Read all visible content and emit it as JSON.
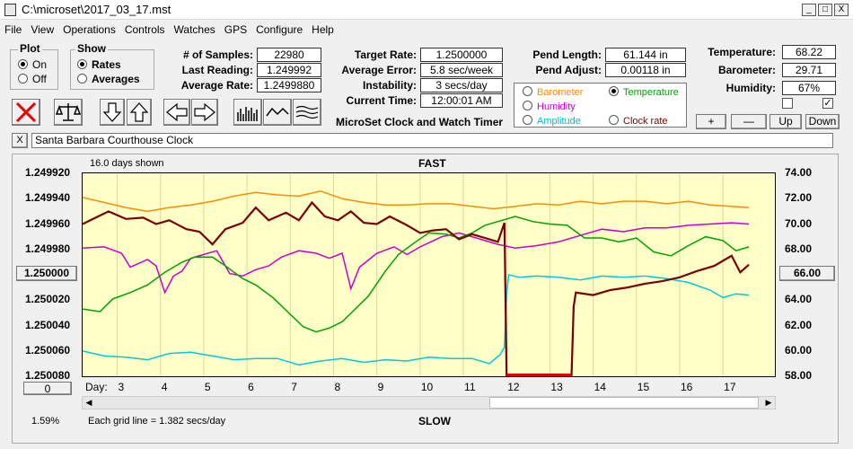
{
  "window": {
    "title": "C:\\microset\\2017_03_17.mst",
    "btn_min": "_",
    "btn_max": "□",
    "btn_close": "X"
  },
  "menu": [
    "File",
    "View",
    "Operations",
    "Controls",
    "Watches",
    "GPS",
    "Configure",
    "Help"
  ],
  "plot_group": {
    "title": "Plot",
    "on": "On",
    "off": "Off",
    "selected": "On"
  },
  "show_group": {
    "title": "Show",
    "rates": "Rates",
    "averages": "Averages",
    "selected": "Rates"
  },
  "stats": {
    "samples_label": "# of Samples:",
    "samples": "22980",
    "last_label": "Last Reading:",
    "last": "1.249992",
    "avg_label": "Average Rate:",
    "avg": "1.2499880",
    "target_label": "Target Rate:",
    "target": "1.2500000",
    "err_label": "Average Error:",
    "err": "5.8 sec/week",
    "instab_label": "Instability:",
    "instab": "3 secs/day",
    "time_label": "Current Time:",
    "time": "12:00:01 AM",
    "pend_len_label": "Pend Length:",
    "pend_len": "61.144 in",
    "pend_adj_label": "Pend Adjust:",
    "pend_adj": "0.00118 in",
    "temp_label": "Temperature:",
    "temp": "68.22",
    "baro_label": "Barometer:",
    "baro": "29.71",
    "hum_label": "Humidity:",
    "hum": "67%"
  },
  "app_label": "MicroSet Clock and Watch Timer",
  "series_select": {
    "barometer": "Barometer",
    "temperature": "Temperature",
    "humidity": "Humidity",
    "amplitude": "Amplitude",
    "clock_rate": "Clock rate",
    "selected": "Temperature",
    "colors": {
      "barometer": "#ff8c00",
      "temperature": "#00a000",
      "humidity": "#cc00cc",
      "amplitude": "#00c8e0",
      "clock_rate": "#7a0000"
    }
  },
  "right_buttons": {
    "plus": "+",
    "minus": "—",
    "up": "Up",
    "down": "Down"
  },
  "checkboxes": {
    "first": false,
    "second": true
  },
  "clock_name": "Santa Barbara Courthouse Clock",
  "close_x": "X",
  "chart_header": {
    "days_shown": "16.0 days shown",
    "fast": "FAST",
    "slow": "SLOW",
    "grid_note": "Each grid line = 1.382 secs/day",
    "day_label": "Day:",
    "percent": "1.59%",
    "left_btn": "1.250000",
    "right_btn": "66.00",
    "zero_btn": "0"
  },
  "chart_data": {
    "type": "line",
    "xlim": [
      2.2,
      18.2
    ],
    "days": [
      "3",
      "4",
      "5",
      "6",
      "7",
      "8",
      "9",
      "10",
      "11",
      "12",
      "13",
      "14",
      "15",
      "16",
      "17"
    ],
    "y_left_ticks": [
      "1.249920",
      "1.249940",
      "1.249960",
      "1.249980",
      "1.250000",
      "1.250020",
      "1.250040",
      "1.250060",
      "1.250080"
    ],
    "y_right_ticks": [
      "74.00",
      "72.00",
      "70.00",
      "68.00",
      "66.00",
      "64.00",
      "62.00",
      "60.00",
      "58.00"
    ],
    "series": [
      {
        "key": "barometer",
        "color": "#ff8c00",
        "points": [
          [
            2.2,
            72.1
          ],
          [
            2.7,
            71.7
          ],
          [
            3.2,
            71.3
          ],
          [
            3.7,
            71.0
          ],
          [
            4.2,
            71.3
          ],
          [
            4.7,
            71.5
          ],
          [
            5.2,
            71.8
          ],
          [
            5.7,
            72.2
          ],
          [
            6.2,
            72.5
          ],
          [
            6.7,
            72.3
          ],
          [
            7.2,
            72.2
          ],
          [
            7.7,
            72.6
          ],
          [
            8.2,
            72.0
          ],
          [
            8.7,
            71.7
          ],
          [
            9.2,
            71.5
          ],
          [
            9.7,
            71.5
          ],
          [
            10.2,
            71.6
          ],
          [
            10.7,
            71.6
          ],
          [
            11.2,
            71.4
          ],
          [
            11.7,
            71.2
          ],
          [
            12.2,
            71.4
          ],
          [
            12.7,
            71.6
          ],
          [
            13.2,
            71.5
          ],
          [
            13.7,
            71.8
          ],
          [
            14.2,
            71.6
          ],
          [
            14.7,
            71.8
          ],
          [
            15.2,
            71.8
          ],
          [
            15.7,
            71.6
          ],
          [
            16.2,
            71.8
          ],
          [
            16.7,
            71.5
          ],
          [
            17.2,
            71.4
          ],
          [
            17.6,
            71.3
          ]
        ]
      },
      {
        "key": "humidity",
        "color": "#cc00cc",
        "points": [
          [
            2.2,
            68.1
          ],
          [
            2.7,
            68.2
          ],
          [
            3.1,
            67.7
          ],
          [
            3.3,
            66.6
          ],
          [
            3.7,
            67.2
          ],
          [
            3.9,
            66.7
          ],
          [
            4.1,
            64.6
          ],
          [
            4.3,
            65.9
          ],
          [
            4.5,
            66.3
          ],
          [
            4.7,
            67.3
          ],
          [
            5.0,
            67.6
          ],
          [
            5.3,
            67.9
          ],
          [
            5.6,
            66.1
          ],
          [
            5.9,
            65.9
          ],
          [
            6.2,
            66.4
          ],
          [
            6.5,
            66.7
          ],
          [
            6.8,
            67.4
          ],
          [
            7.2,
            67.9
          ],
          [
            7.6,
            67.7
          ],
          [
            7.9,
            67.3
          ],
          [
            8.2,
            67.7
          ],
          [
            8.4,
            64.9
          ],
          [
            8.6,
            66.6
          ],
          [
            9.0,
            67.7
          ],
          [
            9.4,
            68.2
          ],
          [
            9.7,
            67.6
          ],
          [
            10.0,
            68.2
          ],
          [
            10.5,
            69.0
          ],
          [
            10.9,
            69.3
          ],
          [
            11.3,
            68.9
          ],
          [
            11.8,
            68.4
          ],
          [
            12.2,
            68.1
          ],
          [
            12.7,
            68.3
          ],
          [
            13.2,
            68.6
          ],
          [
            13.7,
            69.1
          ],
          [
            14.2,
            69.6
          ],
          [
            14.7,
            69.4
          ],
          [
            15.2,
            69.7
          ],
          [
            15.7,
            69.7
          ],
          [
            16.2,
            69.9
          ],
          [
            16.7,
            70.0
          ],
          [
            17.2,
            70.1
          ],
          [
            17.6,
            70.0
          ]
        ]
      },
      {
        "key": "temperature",
        "color": "#00a000",
        "points": [
          [
            2.2,
            63.3
          ],
          [
            2.6,
            63.1
          ],
          [
            2.9,
            64.1
          ],
          [
            3.3,
            64.6
          ],
          [
            3.7,
            65.2
          ],
          [
            4.1,
            66.2
          ],
          [
            4.5,
            67.0
          ],
          [
            4.8,
            67.4
          ],
          [
            5.2,
            67.4
          ],
          [
            5.5,
            66.7
          ],
          [
            5.9,
            65.7
          ],
          [
            6.2,
            65.2
          ],
          [
            6.6,
            64.2
          ],
          [
            6.9,
            63.2
          ],
          [
            7.3,
            61.9
          ],
          [
            7.6,
            61.5
          ],
          [
            7.9,
            61.8
          ],
          [
            8.2,
            62.3
          ],
          [
            8.5,
            63.3
          ],
          [
            8.8,
            64.3
          ],
          [
            9.2,
            66.3
          ],
          [
            9.5,
            67.6
          ],
          [
            9.9,
            68.6
          ],
          [
            10.2,
            69.3
          ],
          [
            10.6,
            69.2
          ],
          [
            10.9,
            68.9
          ],
          [
            11.2,
            69.3
          ],
          [
            11.5,
            69.9
          ],
          [
            11.8,
            70.2
          ],
          [
            12.2,
            70.6
          ],
          [
            12.6,
            70.2
          ],
          [
            13.0,
            70.0
          ],
          [
            13.4,
            69.9
          ],
          [
            13.8,
            68.9
          ],
          [
            14.2,
            68.9
          ],
          [
            14.6,
            68.6
          ],
          [
            15.0,
            68.9
          ],
          [
            15.4,
            67.8
          ],
          [
            15.8,
            67.5
          ],
          [
            16.2,
            68.3
          ],
          [
            16.6,
            69.0
          ],
          [
            17.0,
            68.7
          ],
          [
            17.3,
            67.9
          ],
          [
            17.6,
            68.2
          ]
        ]
      },
      {
        "key": "amplitude",
        "color": "#00c8e0",
        "points": [
          [
            2.2,
            60.0
          ],
          [
            2.7,
            59.6
          ],
          [
            3.2,
            59.5
          ],
          [
            3.7,
            59.3
          ],
          [
            4.2,
            59.8
          ],
          [
            4.7,
            59.9
          ],
          [
            5.2,
            59.6
          ],
          [
            5.7,
            59.3
          ],
          [
            6.2,
            59.4
          ],
          [
            6.7,
            59.4
          ],
          [
            7.2,
            58.9
          ],
          [
            7.7,
            59.2
          ],
          [
            8.2,
            59.4
          ],
          [
            8.7,
            59.1
          ],
          [
            9.2,
            59.3
          ],
          [
            9.7,
            59.2
          ],
          [
            10.2,
            59.5
          ],
          [
            10.7,
            59.4
          ],
          [
            11.2,
            59.4
          ],
          [
            11.6,
            59.0
          ],
          [
            11.85,
            59.7
          ],
          [
            11.95,
            60.3
          ],
          [
            12.0,
            64.5
          ],
          [
            12.05,
            66.0
          ],
          [
            12.3,
            65.8
          ],
          [
            12.7,
            65.9
          ],
          [
            13.2,
            65.8
          ],
          [
            13.7,
            65.6
          ],
          [
            14.2,
            65.9
          ],
          [
            14.7,
            65.8
          ],
          [
            15.2,
            65.9
          ],
          [
            15.7,
            65.7
          ],
          [
            16.2,
            65.4
          ],
          [
            16.7,
            64.8
          ],
          [
            17.0,
            64.2
          ],
          [
            17.3,
            64.5
          ],
          [
            17.6,
            64.4
          ]
        ]
      },
      {
        "key": "clock_rate",
        "color": "#7a0000",
        "points": [
          [
            2.2,
            70.0
          ],
          [
            2.5,
            70.5
          ],
          [
            2.8,
            71.0
          ],
          [
            3.2,
            70.4
          ],
          [
            3.6,
            70.5
          ],
          [
            3.9,
            70.0
          ],
          [
            4.2,
            70.3
          ],
          [
            4.6,
            69.6
          ],
          [
            4.9,
            69.4
          ],
          [
            5.2,
            68.4
          ],
          [
            5.5,
            69.6
          ],
          [
            5.9,
            70.1
          ],
          [
            6.2,
            71.3
          ],
          [
            6.5,
            70.3
          ],
          [
            6.9,
            70.9
          ],
          [
            7.2,
            70.3
          ],
          [
            7.5,
            71.7
          ],
          [
            7.8,
            70.6
          ],
          [
            8.1,
            70.3
          ],
          [
            8.4,
            71.0
          ],
          [
            8.7,
            70.1
          ],
          [
            9.0,
            70.0
          ],
          [
            9.3,
            70.6
          ],
          [
            9.7,
            69.9
          ],
          [
            10.0,
            69.3
          ],
          [
            10.3,
            69.5
          ],
          [
            10.6,
            69.6
          ],
          [
            10.9,
            68.8
          ],
          [
            11.2,
            69.2
          ],
          [
            11.5,
            68.9
          ],
          [
            11.8,
            68.6
          ],
          [
            11.95,
            70.1
          ],
          [
            12.0,
            58.0
          ],
          [
            13.5,
            58.0
          ],
          [
            13.55,
            63.5
          ],
          [
            13.6,
            64.6
          ],
          [
            14.0,
            64.4
          ],
          [
            14.4,
            64.8
          ],
          [
            14.8,
            65.0
          ],
          [
            15.2,
            65.3
          ],
          [
            15.6,
            65.5
          ],
          [
            16.0,
            65.8
          ],
          [
            16.4,
            66.3
          ],
          [
            16.8,
            66.7
          ],
          [
            17.2,
            67.5
          ],
          [
            17.4,
            66.2
          ],
          [
            17.6,
            66.8
          ]
        ]
      }
    ]
  }
}
